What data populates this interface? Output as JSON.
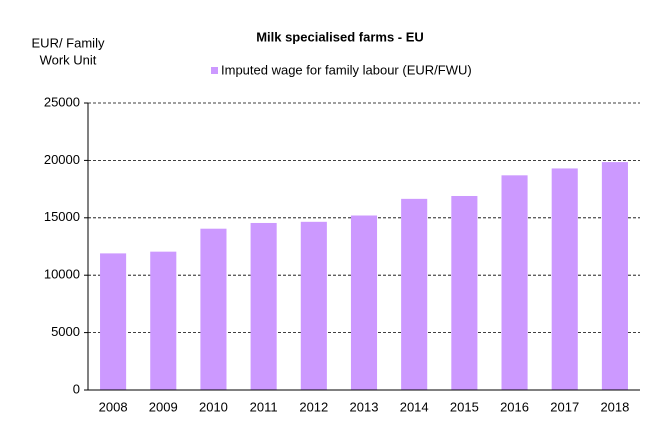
{
  "chart_data": {
    "type": "bar",
    "title": "Milk specialised farms - EU",
    "ylabel": [
      "EUR/ Family",
      "Work Unit"
    ],
    "categories": [
      "2008",
      "2009",
      "2010",
      "2011",
      "2012",
      "2013",
      "2014",
      "2015",
      "2016",
      "2017",
      "2018"
    ],
    "series": [
      {
        "name": "Imputed wage for family labour (EUR/FWU)",
        "color": "#cc99ff",
        "values": [
          11900,
          12050,
          14050,
          14550,
          14650,
          15200,
          16650,
          16900,
          18700,
          19300,
          19850
        ]
      }
    ],
    "ylim": [
      0,
      25000
    ],
    "yticks": [
      0,
      5000,
      10000,
      15000,
      20000,
      25000
    ],
    "grid": true,
    "legend": "top"
  }
}
